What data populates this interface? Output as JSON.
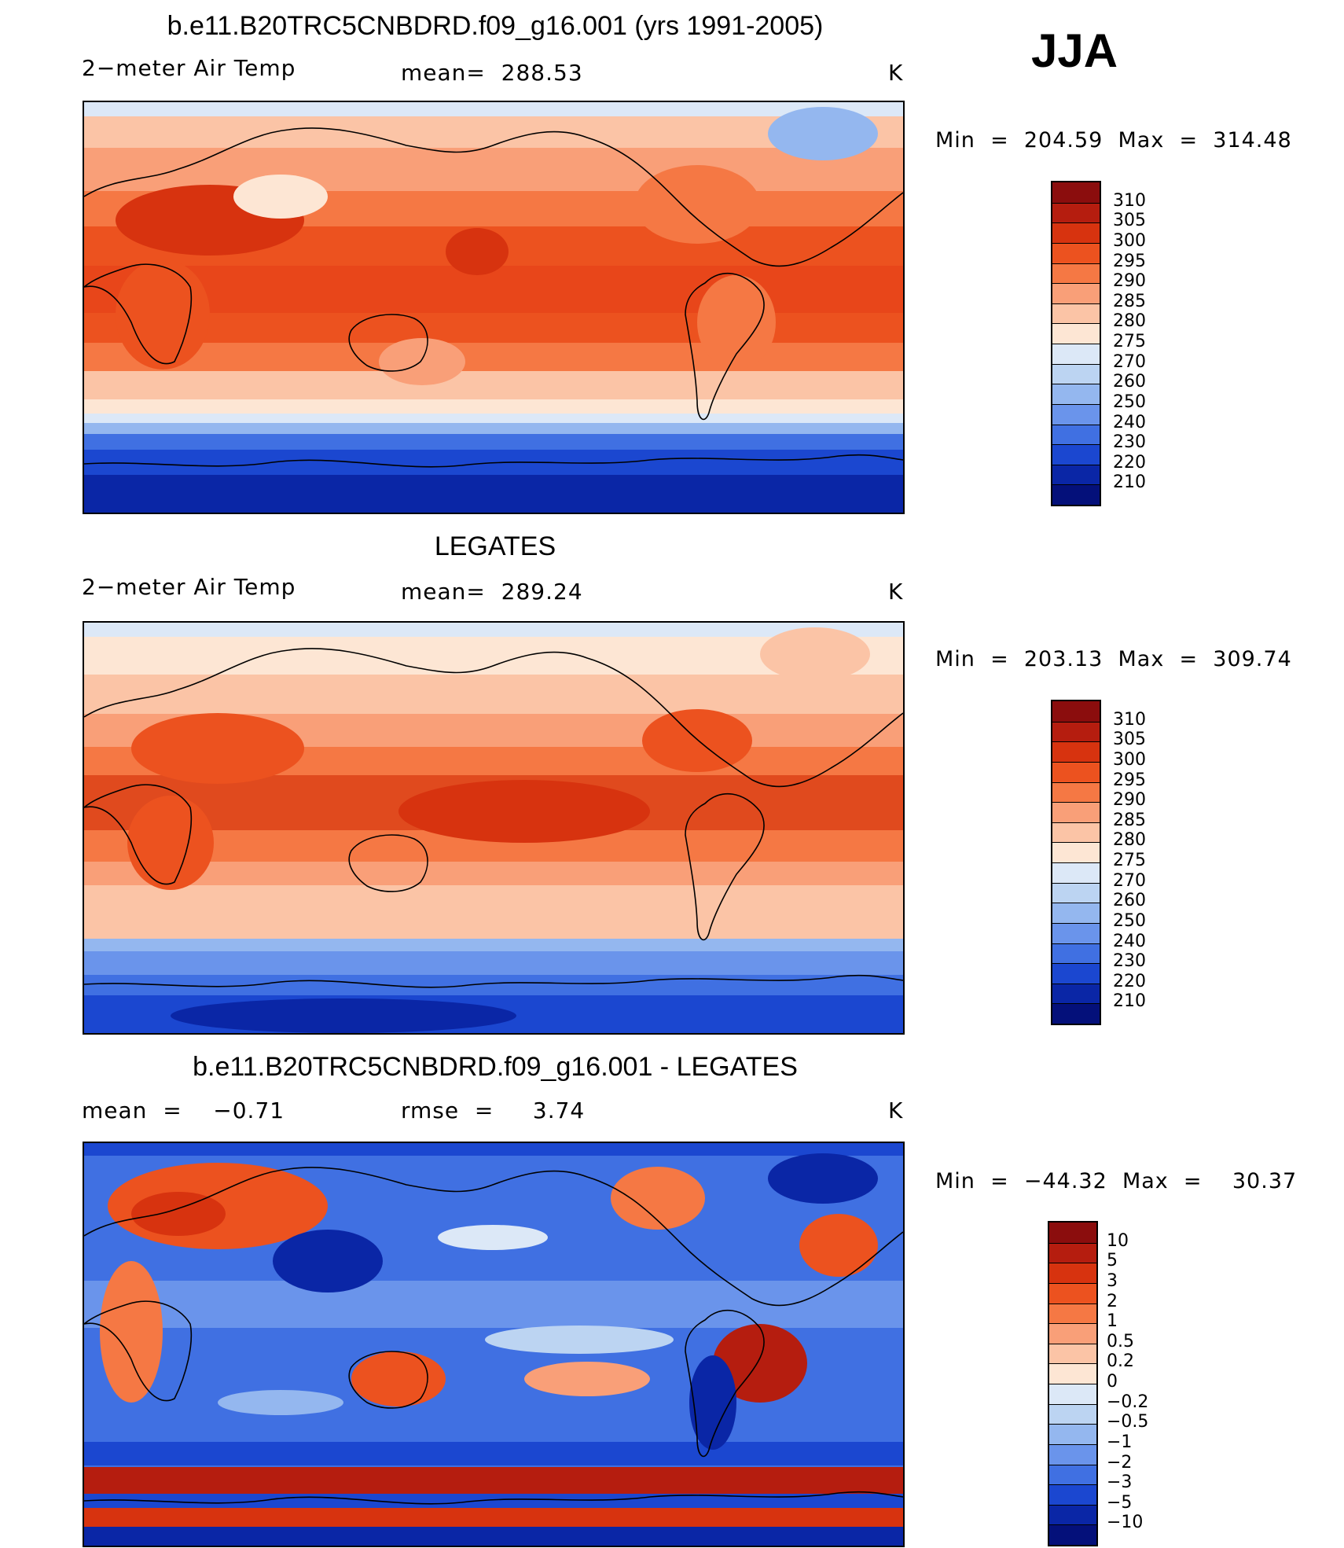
{
  "season": "JJA",
  "panels": [
    {
      "title": "b.e11.B20TRC5CNBDRD.f09_g16.001 (yrs 1991-2005)",
      "left": "2−meter Air Temp",
      "center": "mean=  288.53",
      "units": "K",
      "minmax": "Min  =  204.59  Max  =  314.48",
      "colorbar": {
        "labels": [
          "310",
          "305",
          "300",
          "295",
          "290",
          "285",
          "280",
          "275",
          "270",
          "260",
          "250",
          "240",
          "230",
          "220",
          "210"
        ],
        "colors": [
          "#8b0d0d",
          "#b51d0f",
          "#d7330f",
          "#ec521f",
          "#f57844",
          "#f99f78",
          "#fbc4a6",
          "#fde6d4",
          "#dce8f7",
          "#bcd4f2",
          "#94b7ef",
          "#6a94eb",
          "#4070e2",
          "#1b47d0",
          "#0a26a6",
          "#04107a"
        ]
      }
    },
    {
      "title": "LEGATES",
      "left": "2−meter Air Temp",
      "center": "mean=  289.24",
      "units": "K",
      "minmax": "Min  =  203.13  Max  =  309.74",
      "colorbar": {
        "labels": [
          "310",
          "305",
          "300",
          "295",
          "290",
          "285",
          "280",
          "275",
          "270",
          "260",
          "250",
          "240",
          "230",
          "220",
          "210"
        ],
        "colors": [
          "#8b0d0d",
          "#b51d0f",
          "#d7330f",
          "#ec521f",
          "#f57844",
          "#f99f78",
          "#fbc4a6",
          "#fde6d4",
          "#dce8f7",
          "#bcd4f2",
          "#94b7ef",
          "#6a94eb",
          "#4070e2",
          "#1b47d0",
          "#0a26a6",
          "#04107a"
        ]
      }
    },
    {
      "title": "b.e11.B20TRC5CNBDRD.f09_g16.001 - LEGATES",
      "left": "mean  =    −0.71",
      "center": "rmse  =     3.74",
      "units": "K",
      "minmax": "Min  =  −44.32  Max  =    30.37",
      "colorbar": {
        "labels": [
          "10",
          "5",
          "3",
          "2",
          "1",
          "0.5",
          "0.2",
          "0",
          "−0.2",
          "−0.5",
          "−1",
          "−2",
          "−3",
          "−5",
          "−10"
        ],
        "colors": [
          "#8b0d0d",
          "#b51d0f",
          "#d7330f",
          "#ec521f",
          "#f57844",
          "#f99f78",
          "#fbc4a6",
          "#fde6d4",
          "#dce8f7",
          "#bcd4f2",
          "#94b7ef",
          "#6a94eb",
          "#4070e2",
          "#1b47d0",
          "#0a26a6",
          "#04107a"
        ]
      }
    }
  ]
}
